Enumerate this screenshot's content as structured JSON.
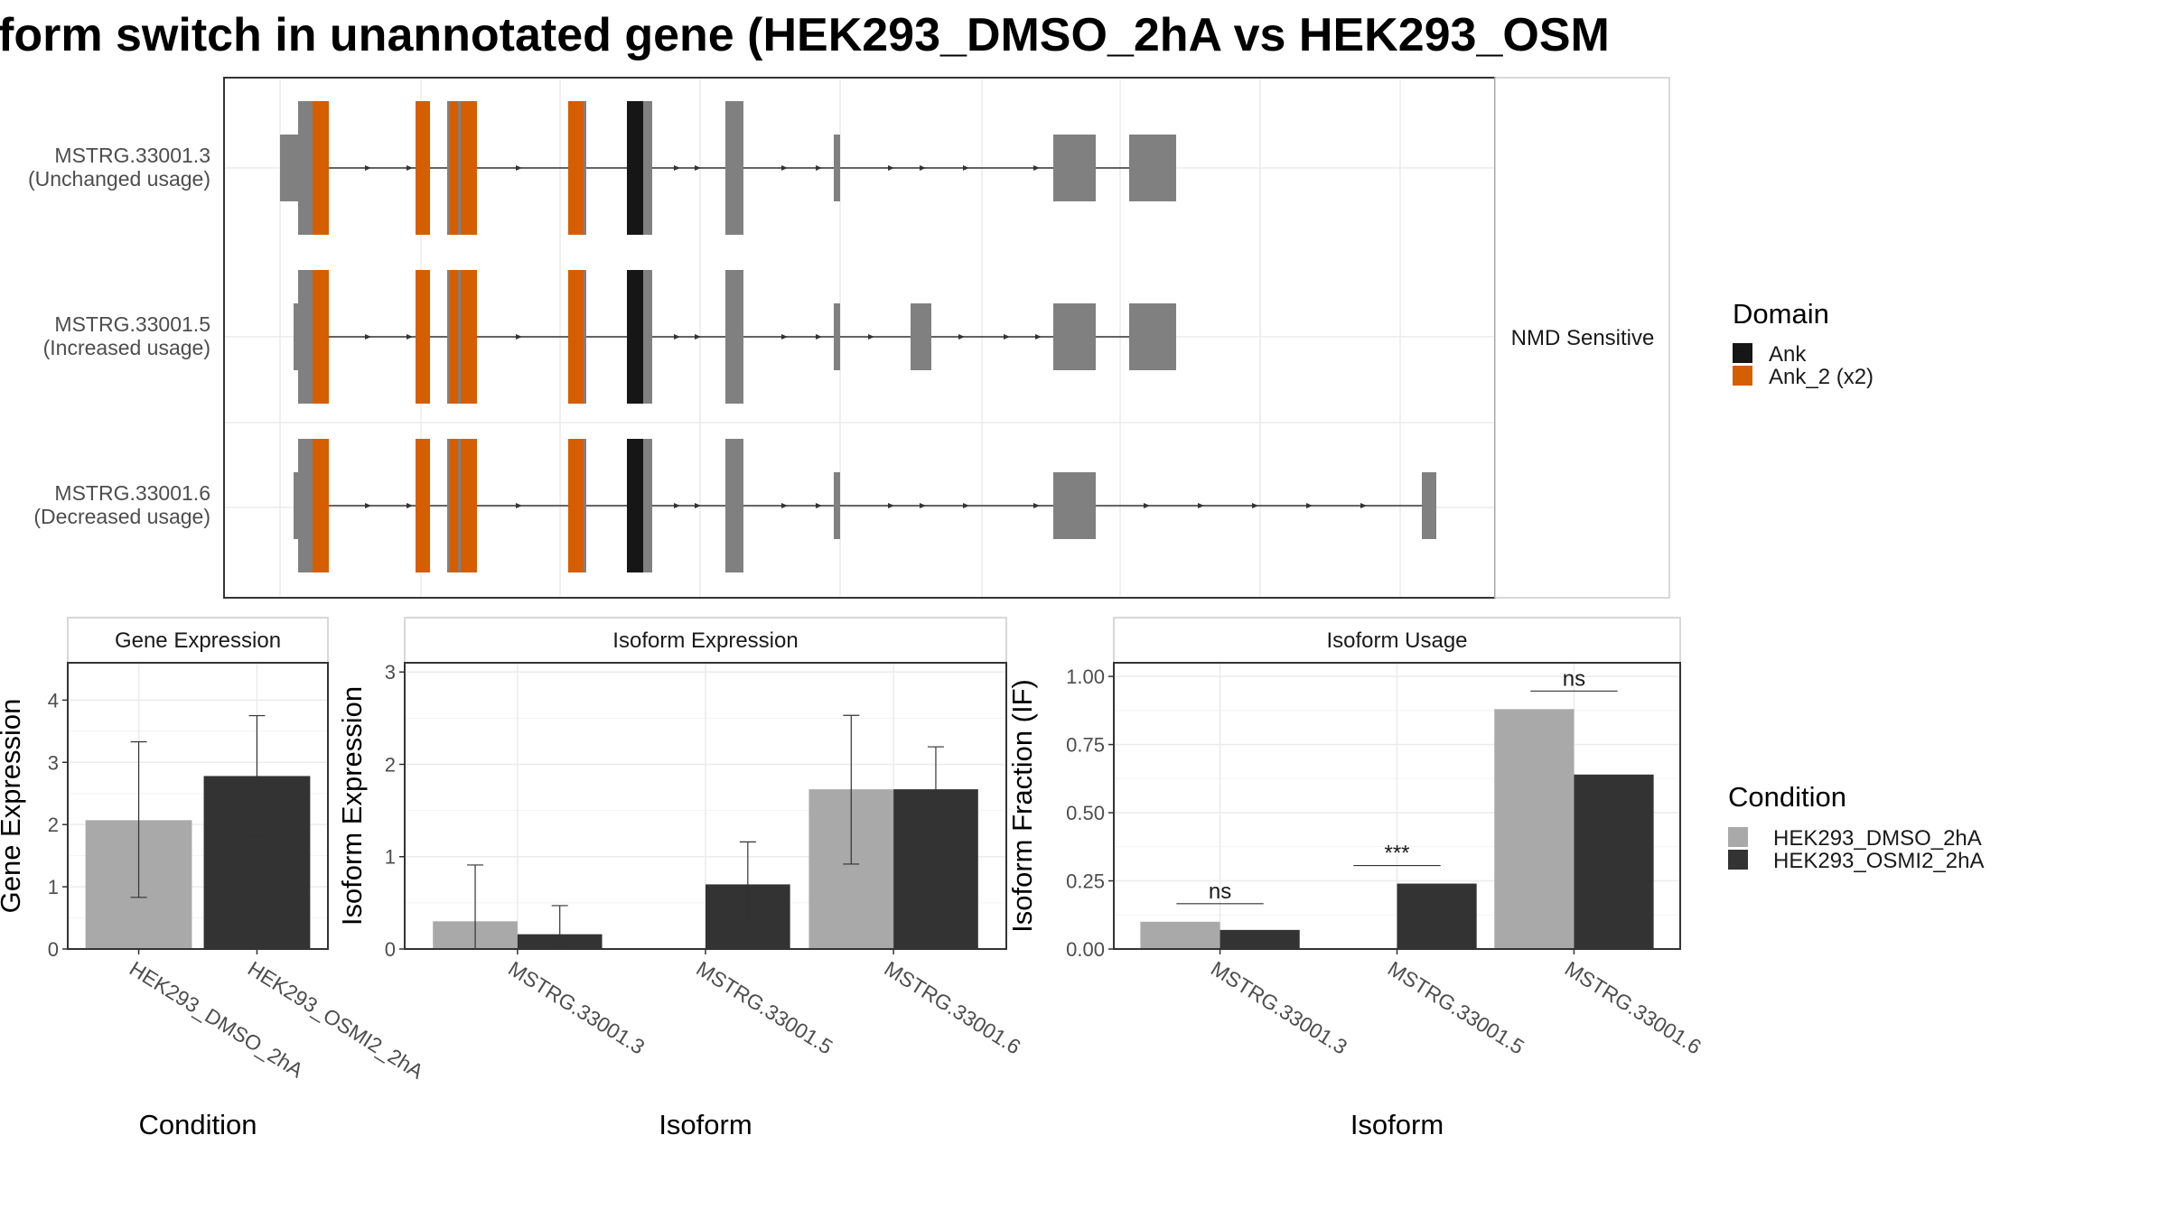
{
  "title": "form switch in unannotated gene (HEK293_DMSO_2hA vs HEK293_OSM",
  "colors": {
    "exon": "#808080",
    "ank": "#161616",
    "ank2": "#d55e00",
    "dmso": "#a9a9a9",
    "osmi": "#333333",
    "grid": "#ebebeb",
    "panel_border": "#333333"
  },
  "structure": {
    "side_label": "NMD Sensitive",
    "isoforms": [
      {
        "id": "MSTRG.33001.3",
        "usage": "(Unchanged usage)"
      },
      {
        "id": "MSTRG.33001.5",
        "usage": "(Increased usage)"
      },
      {
        "id": "MSTRG.33001.6",
        "usage": "(Decreased usage)"
      }
    ]
  },
  "domain_legend": {
    "title": "Domain",
    "items": [
      {
        "label": "Ank",
        "color": "#161616"
      },
      {
        "label": "Ank_2 (x2)",
        "color": "#d55e00"
      }
    ]
  },
  "condition_legend": {
    "title": "Condition",
    "items": [
      {
        "label": "HEK293_DMSO_2hA",
        "color": "#a9a9a9"
      },
      {
        "label": "HEK293_OSMI2_2hA",
        "color": "#333333"
      }
    ]
  },
  "chart_data": [
    {
      "type": "bar",
      "title": "Gene Expression",
      "xlabel": "Condition",
      "ylabel": "Gene Expression",
      "ylim": [
        0,
        4.6
      ],
      "yticks": [
        0,
        1,
        2,
        3,
        4
      ],
      "categories": [
        "HEK293_DMSO_2hA",
        "HEK293_OSMI2_2hA"
      ],
      "values": [
        2.07,
        2.78
      ],
      "errors": [
        [
          0.83,
          3.33
        ],
        [
          1.81,
          3.75
        ]
      ]
    },
    {
      "type": "bar",
      "title": "Isoform Expression",
      "xlabel": "Isoform",
      "ylabel": "Isoform Expression",
      "ylim": [
        0,
        3.1
      ],
      "yticks": [
        0,
        1,
        2,
        3
      ],
      "categories": [
        "MSTRG.33001.3",
        "MSTRG.33001.5",
        "MSTRG.33001.6"
      ],
      "series": [
        {
          "name": "HEK293_DMSO_2hA",
          "values": [
            0.3,
            0.0,
            1.73
          ],
          "errors": [
            [
              0.0,
              0.91
            ],
            [
              0.0,
              0.0
            ],
            [
              0.92,
              2.53
            ]
          ]
        },
        {
          "name": "HEK293_OSMI2_2hA",
          "values": [
            0.16,
            0.7,
            1.73
          ],
          "errors": [
            [
              0.0,
              0.47
            ],
            [
              0.24,
              1.16
            ],
            [
              1.28,
              2.19
            ]
          ]
        }
      ]
    },
    {
      "type": "bar",
      "title": "Isoform Usage",
      "xlabel": "Isoform",
      "ylabel": "Isoform Fraction (IF)",
      "ylim": [
        0,
        1.05
      ],
      "yticks": [
        "0.00",
        "0.25",
        "0.50",
        "0.75",
        "1.00"
      ],
      "categories": [
        "MSTRG.33001.3",
        "MSTRG.33001.5",
        "MSTRG.33001.6"
      ],
      "series": [
        {
          "name": "HEK293_DMSO_2hA",
          "values": [
            0.1,
            0.0,
            0.88
          ]
        },
        {
          "name": "HEK293_OSMI2_2hA",
          "values": [
            0.07,
            0.24,
            0.64
          ]
        }
      ],
      "significance": [
        "ns",
        "***",
        "ns"
      ]
    }
  ]
}
